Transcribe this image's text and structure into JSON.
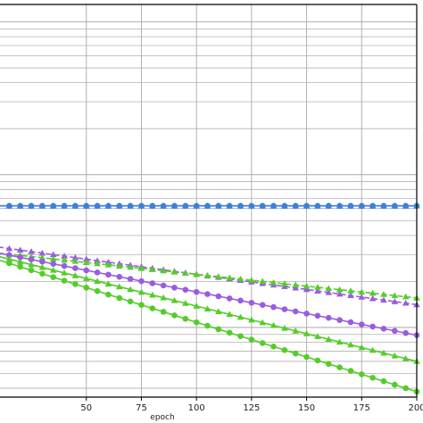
{
  "chart_data": {
    "type": "line",
    "xlabel": "epoch",
    "ylabel": "",
    "title": "",
    "xlim": [
      10,
      200
    ],
    "x_ticks": [
      50,
      75,
      100,
      125,
      150,
      175,
      200
    ],
    "y_scale": "log",
    "ylim": [
      0.0035,
      1.3
    ],
    "grid": true,
    "legend": "none",
    "series": [
      {
        "color": "#3d7fd9",
        "marker": "triangle",
        "line": "solid",
        "x": [
          10,
          200
        ],
        "y": [
          0.0625,
          0.0625
        ]
      },
      {
        "color": "#3d7fd9",
        "marker": "circle",
        "line": "solid",
        "x": [
          10,
          200
        ],
        "y": [
          0.0625,
          0.0625
        ]
      },
      {
        "color": "#9a5ce0",
        "marker": "triangle",
        "line": "dashed",
        "x": [
          10,
          200
        ],
        "y": [
          0.0336,
          0.0141
        ]
      },
      {
        "color": "#55cc2a",
        "marker": "triangle",
        "line": "dashed",
        "x": [
          10,
          200
        ],
        "y": [
          0.0307,
          0.0156
        ]
      },
      {
        "color": "#9a5ce0",
        "marker": "circle",
        "line": "solid",
        "x": [
          10,
          200
        ],
        "y": [
          0.0307,
          0.0089
        ]
      },
      {
        "color": "#55cc2a",
        "marker": "triangle",
        "line": "solid",
        "x": [
          10,
          200
        ],
        "y": [
          0.0292,
          0.006
        ]
      },
      {
        "color": "#55cc2a",
        "marker": "circle",
        "line": "solid",
        "x": [
          10,
          200
        ],
        "y": [
          0.0277,
          0.0038
        ]
      }
    ],
    "colors": {
      "grid": "#b0b0b0",
      "axis": "#000000"
    }
  }
}
